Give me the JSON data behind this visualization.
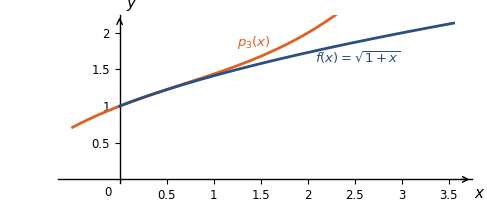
{
  "x_start": -0.5,
  "x_end": 3.55,
  "x_f_start": 0.0,
  "x_ticks": [
    0.5,
    1,
    1.5,
    2,
    2.5,
    3,
    3.5
  ],
  "y_ticks": [
    0.5,
    1,
    1.5,
    2
  ],
  "ylim": [
    -0.05,
    2.25
  ],
  "xlim": [
    -0.65,
    3.75
  ],
  "f_color": "#2B4F81",
  "p3_color": "#E06020",
  "f_label": "$f(x) = \\sqrt{1 + x}$",
  "p3_label": "$p_3(x)$",
  "xlabel": "$x$",
  "ylabel": "$y$",
  "linewidth": 2.0,
  "tick_fontsize": 8.5,
  "label_fontsize": 11
}
